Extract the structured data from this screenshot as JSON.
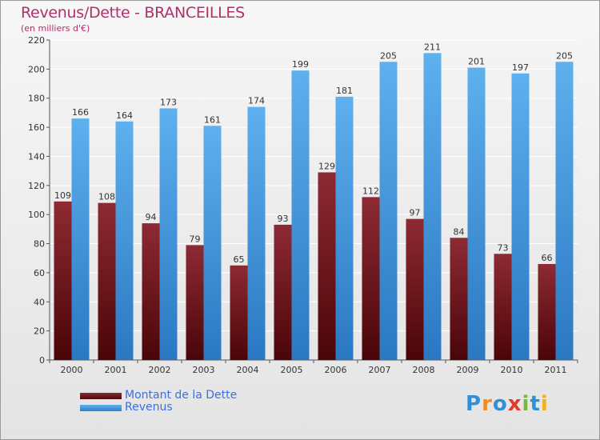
{
  "chart_data": {
    "type": "bar",
    "title": "Revenus/Dette - BRANCEILLES",
    "subtitle": "(en milliers d'€)",
    "categories": [
      "2000",
      "2001",
      "2002",
      "2003",
      "2004",
      "2005",
      "2006",
      "2007",
      "2008",
      "2009",
      "2010",
      "2011"
    ],
    "series": [
      {
        "name": "Montant de la Dette",
        "color": "#7a1f26",
        "values": [
          109,
          108,
          94,
          79,
          65,
          93,
          129,
          112,
          97,
          84,
          73,
          66
        ]
      },
      {
        "name": "Revenus",
        "color": "#4a9ee2",
        "values": [
          166,
          164,
          173,
          161,
          174,
          199,
          181,
          205,
          211,
          201,
          197,
          205
        ]
      }
    ],
    "ylim": [
      0,
      220
    ],
    "yticks": [
      0,
      20,
      40,
      60,
      80,
      100,
      120,
      140,
      160,
      180,
      200,
      220
    ],
    "grid": true,
    "legend_position": "bottom-left"
  },
  "logo": {
    "text": "Proxiti",
    "letters": [
      "P",
      "r",
      "o",
      "x",
      "i",
      "t",
      "i"
    ],
    "colors": [
      "#2f8fd8",
      "#f28c1e",
      "#2f8fd8",
      "#e03a2f",
      "#7ab83a",
      "#2f8fd8",
      "#f2b01e"
    ]
  }
}
